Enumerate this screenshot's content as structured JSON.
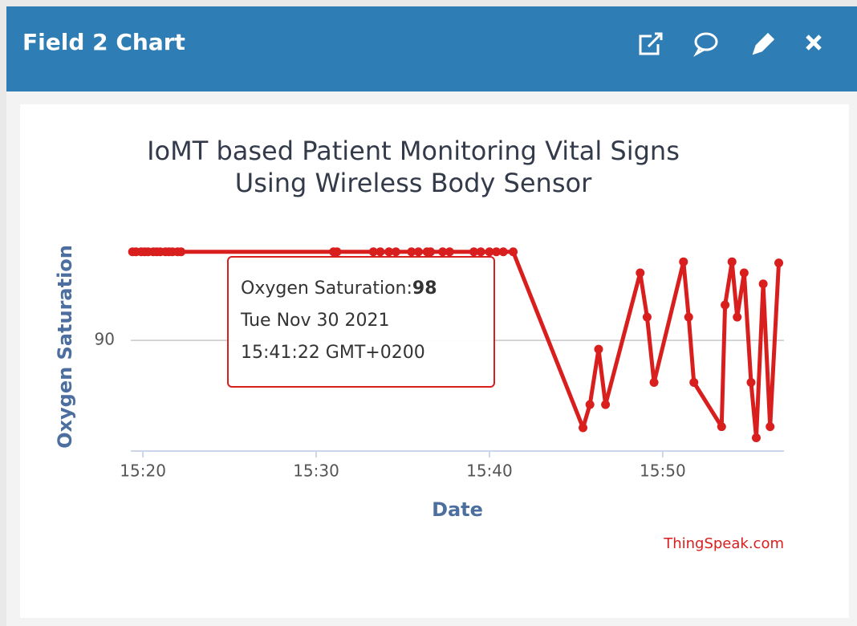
{
  "header": {
    "title": "Field 2 Chart"
  },
  "chart_data": {
    "type": "line",
    "title": [
      "IoMT based Patient Monitoring Vital Signs",
      "Using Wireless Body Sensor"
    ],
    "x_label": "Date",
    "y_label": "Oxygen Saturation",
    "credit": "ThingSpeak.com",
    "x": [
      919.4,
      919.6,
      919.9,
      920.1,
      920.3,
      920.6,
      920.8,
      921.0,
      921.3,
      921.5,
      921.7,
      922.0,
      922.2,
      931.0,
      931.2,
      933.3,
      933.7,
      934.2,
      934.6,
      935.5,
      935.9,
      936.4,
      936.6,
      937.3,
      937.7,
      939.1,
      939.5,
      940.0,
      940.4,
      940.8,
      941.37,
      945.4,
      945.8,
      946.3,
      946.7,
      948.7,
      949.1,
      949.5,
      951.2,
      951.5,
      951.8,
      953.4,
      953.6,
      954.0,
      954.3,
      954.7,
      955.1,
      955.4,
      955.8,
      956.2,
      956.7
    ],
    "series": [
      {
        "name": "Oxygen Saturation",
        "color": "#d91e1e",
        "values": [
          98,
          98,
          98,
          98,
          98,
          98,
          98,
          98,
          98,
          98,
          98,
          98,
          98,
          98,
          98,
          98,
          98,
          98,
          98,
          98,
          98,
          98,
          98,
          98,
          98,
          98,
          98,
          98,
          98,
          98,
          98,
          82.1,
          84.2,
          89.2,
          84.2,
          96.1,
          92.1,
          86.2,
          97.1,
          92.1,
          86.2,
          82.2,
          93.2,
          97.1,
          92.1,
          96.1,
          86.2,
          81.2,
          95.1,
          82.2,
          97.0
        ]
      }
    ],
    "xlim": [
      919.3,
      957
    ],
    "xticks": [
      {
        "value": 920,
        "label": "15:20"
      },
      {
        "value": 930,
        "label": "15:30"
      },
      {
        "value": 940,
        "label": "15:40"
      },
      {
        "value": 950,
        "label": "15:50"
      }
    ],
    "ylim": [
      80,
      99
    ],
    "yticks": [
      90
    ],
    "grid": true,
    "tooltip": {
      "label": "Oxygen Saturation:",
      "value": 98,
      "date": "Tue Nov 30 2021",
      "time": "15:41:22 GMT+0200"
    }
  }
}
